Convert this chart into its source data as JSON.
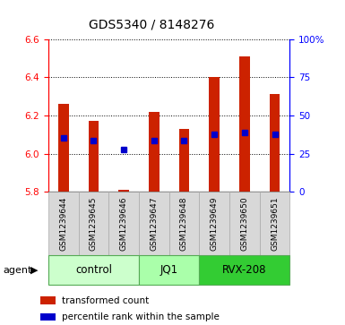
{
  "title": "GDS5340 / 8148276",
  "samples": [
    "GSM1239644",
    "GSM1239645",
    "GSM1239646",
    "GSM1239647",
    "GSM1239648",
    "GSM1239649",
    "GSM1239650",
    "GSM1239651"
  ],
  "transformed_count": [
    6.26,
    6.17,
    5.81,
    6.22,
    6.13,
    6.4,
    6.51,
    6.31
  ],
  "percentile_rank": [
    6.08,
    6.07,
    6.02,
    6.07,
    6.07,
    6.1,
    6.11,
    6.1
  ],
  "bar_bottom": 5.8,
  "ylim_left": [
    5.8,
    6.6
  ],
  "ylim_right": [
    0,
    100
  ],
  "yticks_left": [
    5.8,
    6.0,
    6.2,
    6.4,
    6.6
  ],
  "yticks_right": [
    0,
    25,
    50,
    75,
    100
  ],
  "ytick_labels_right": [
    "0",
    "25",
    "50",
    "75",
    "100%"
  ],
  "bar_color": "#cc2200",
  "dot_color": "#0000cc",
  "groups": [
    {
      "label": "control",
      "start": 0,
      "end": 3,
      "color": "#ccffcc"
    },
    {
      "label": "JQ1",
      "start": 3,
      "end": 5,
      "color": "#aaffaa"
    },
    {
      "label": "RVX-208",
      "start": 5,
      "end": 8,
      "color": "#33cc33"
    }
  ],
  "agent_label": "agent",
  "legend_items": [
    {
      "color": "#cc2200",
      "label": "transformed count"
    },
    {
      "color": "#0000cc",
      "label": "percentile rank within the sample"
    }
  ],
  "background_color": "#d8d8d8",
  "bar_width": 0.35
}
